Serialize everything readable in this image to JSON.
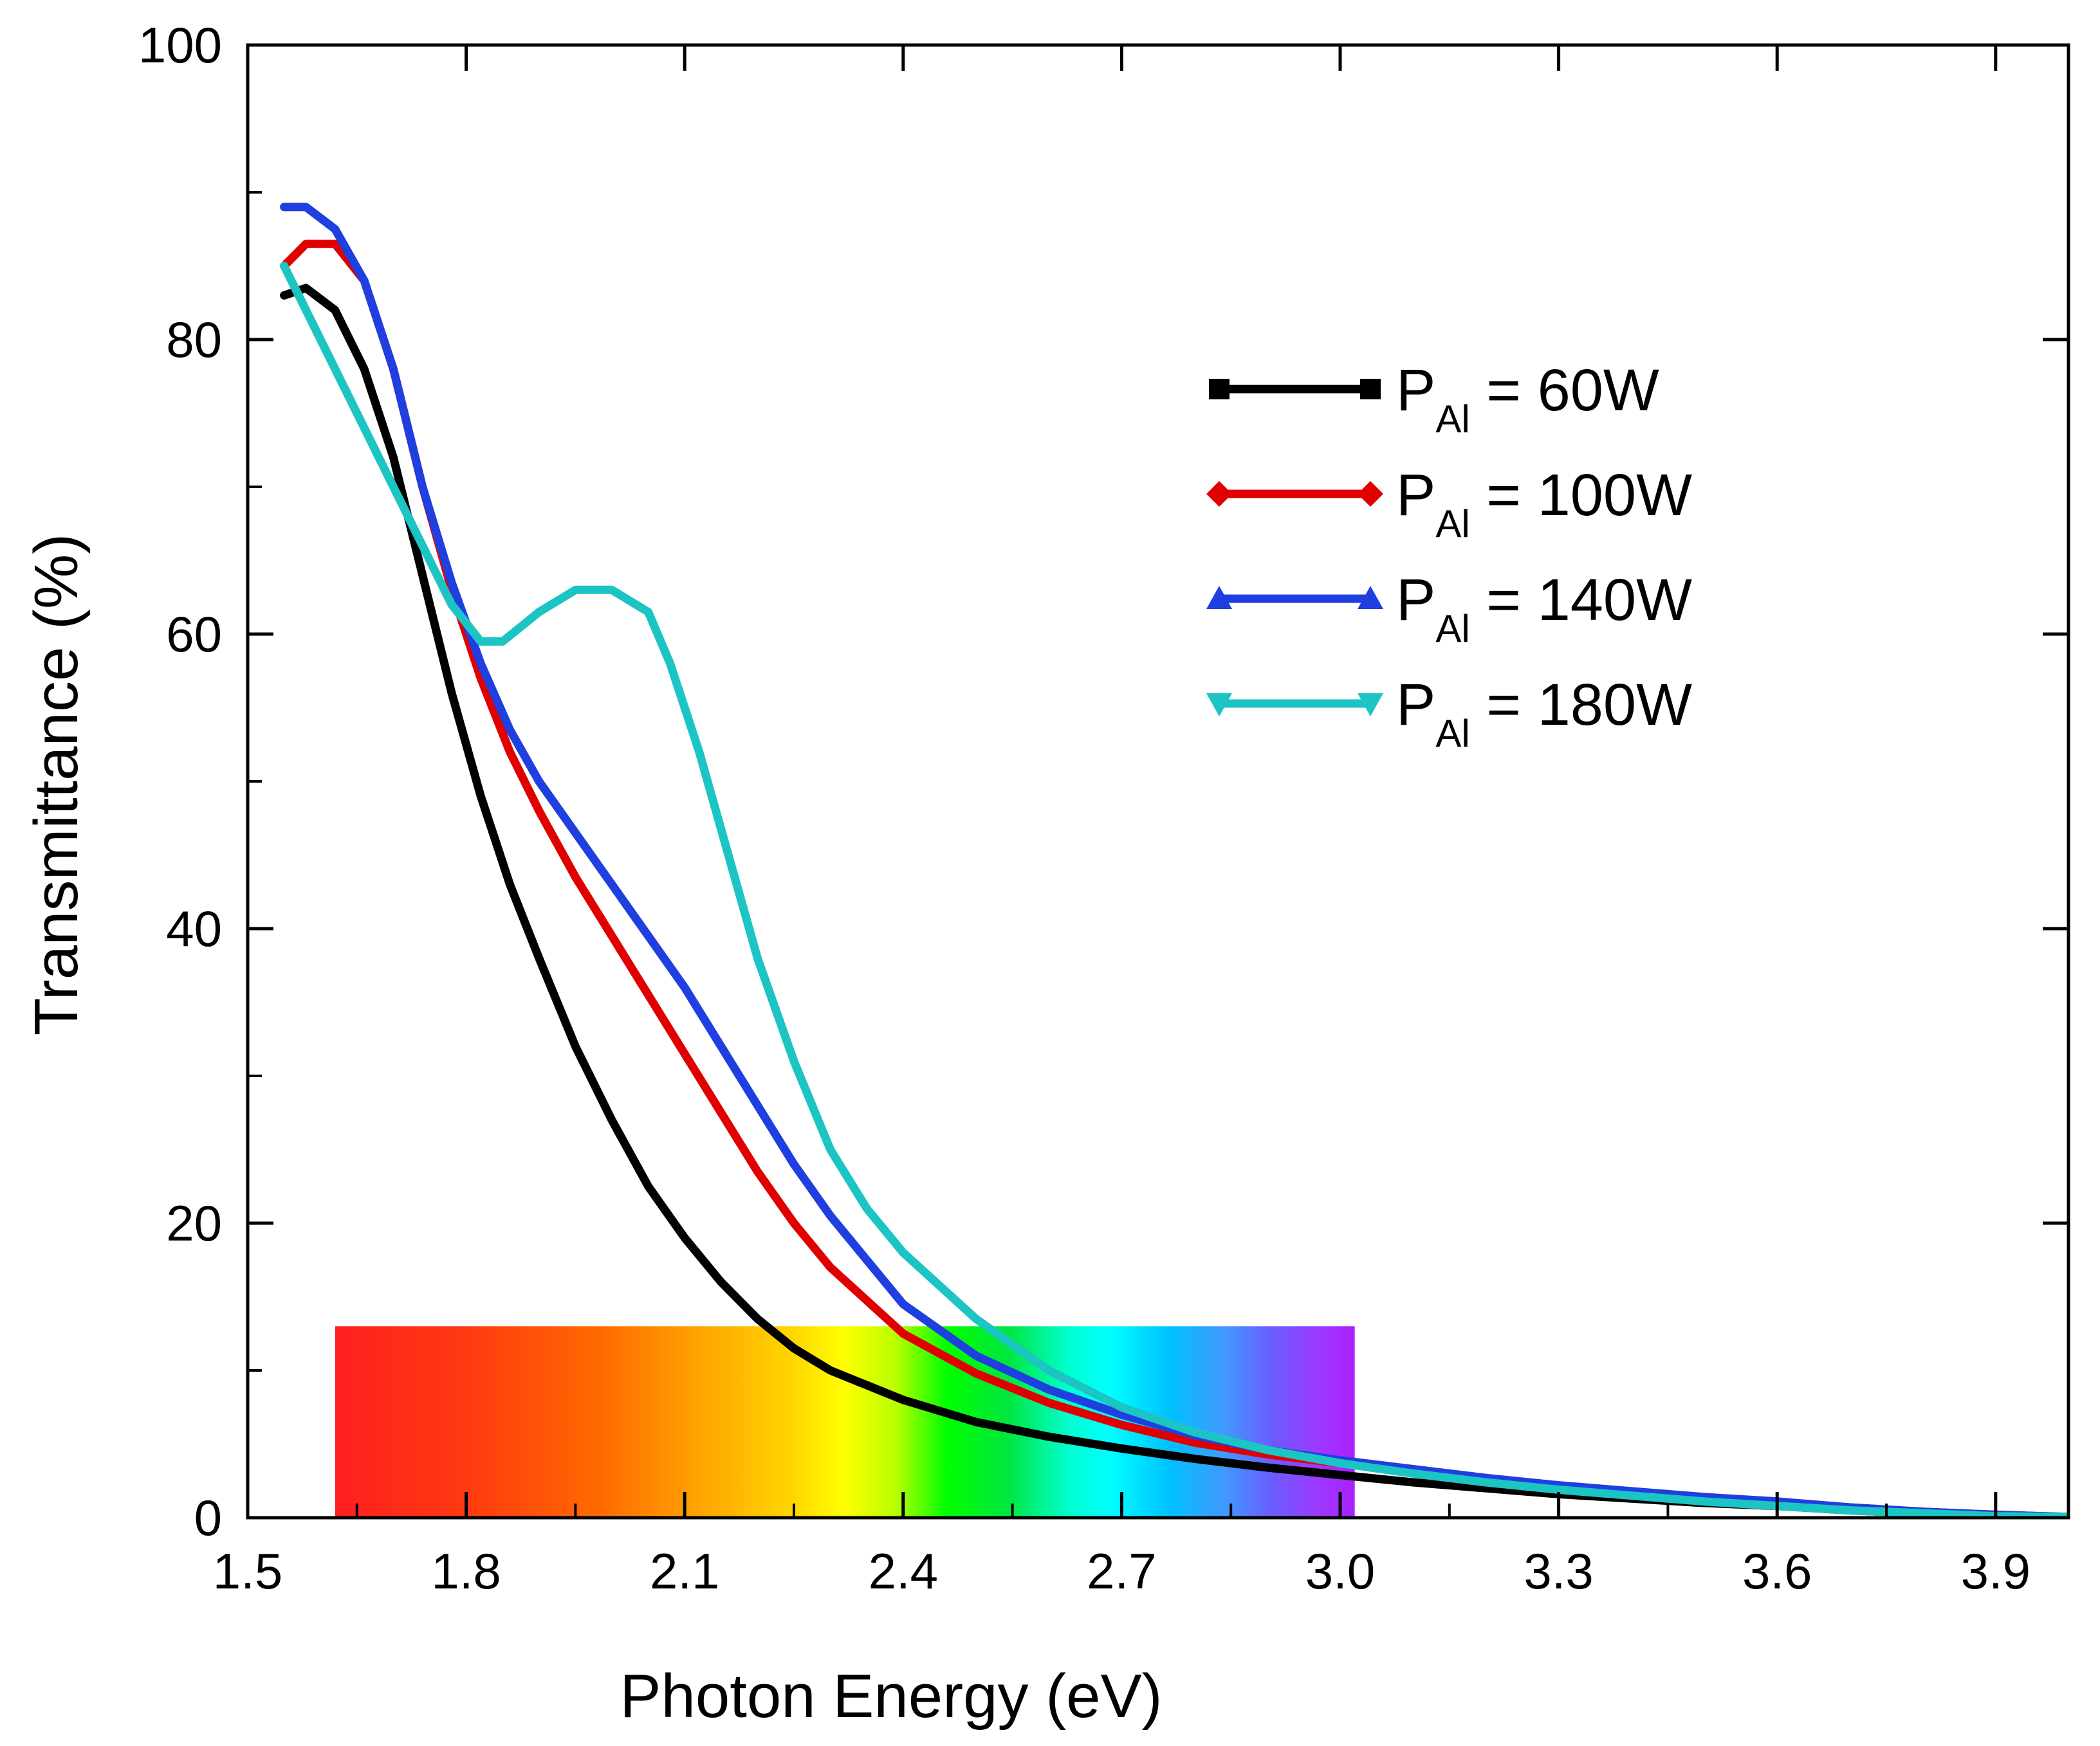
{
  "chart_data": {
    "type": "line",
    "title": "",
    "xlabel": "Photon Energy (eV)",
    "ylabel": "Transmittance (%)",
    "xlim": [
      1.5,
      4.0
    ],
    "ylim": [
      0,
      100
    ],
    "xticks": [
      1.5,
      1.8,
      2.1,
      2.4,
      2.7,
      3.0,
      3.3,
      3.6,
      3.9
    ],
    "xtick_labels": [
      "1.5",
      "1.8",
      "2.1",
      "2.4",
      "2.7",
      "3.0",
      "3.3",
      "3.6",
      "3.9"
    ],
    "yticks": [
      0,
      20,
      40,
      60,
      80,
      100
    ],
    "ytick_labels": [
      "0",
      "20",
      "40",
      "60",
      "80",
      "100"
    ],
    "legend_position": "upper-right",
    "spectrum_band": {
      "x_range": [
        1.62,
        3.02
      ],
      "y_range": [
        0,
        13
      ]
    },
    "series": [
      {
        "name": "P_Al = 60W",
        "label_main": "P",
        "label_sub": "Al",
        "label_rest": " = 60W",
        "color": "#000000",
        "marker": "square",
        "x": [
          1.55,
          1.58,
          1.62,
          1.66,
          1.7,
          1.74,
          1.78,
          1.82,
          1.86,
          1.9,
          1.95,
          2.0,
          2.05,
          2.1,
          2.15,
          2.2,
          2.25,
          2.3,
          2.4,
          2.5,
          2.6,
          2.7,
          2.8,
          2.9,
          3.0,
          3.1,
          3.2,
          3.3,
          3.4,
          3.5,
          3.6,
          3.7,
          3.8,
          3.9,
          4.0
        ],
        "y": [
          83,
          83.5,
          82,
          78,
          72,
          64,
          56,
          49,
          43,
          38,
          32,
          27,
          22.5,
          19,
          16,
          13.5,
          11.5,
          10,
          8,
          6.5,
          5.5,
          4.7,
          4,
          3.4,
          2.9,
          2.4,
          2,
          1.6,
          1.3,
          1.0,
          0.8,
          0.5,
          0.3,
          0.15,
          0.05
        ]
      },
      {
        "name": "P_Al = 100W",
        "label_main": "P",
        "label_sub": "Al",
        "label_rest": " = 100W",
        "color": "#e00000",
        "marker": "diamond",
        "x": [
          1.55,
          1.58,
          1.62,
          1.66,
          1.7,
          1.74,
          1.78,
          1.82,
          1.86,
          1.9,
          1.95,
          2.0,
          2.05,
          2.1,
          2.15,
          2.2,
          2.25,
          2.3,
          2.4,
          2.5,
          2.6,
          2.7,
          2.8,
          2.9,
          3.0,
          3.1,
          3.2,
          3.3,
          3.4,
          3.5,
          3.6,
          3.7,
          3.8,
          3.9,
          4.0
        ],
        "y": [
          85,
          86.5,
          86.5,
          84,
          78,
          70,
          63,
          57,
          52,
          48,
          43.5,
          39.5,
          35.5,
          31.5,
          27.5,
          23.5,
          20,
          17,
          12.5,
          9.8,
          7.8,
          6.3,
          5.1,
          4.3,
          3.7,
          3.1,
          2.6,
          2.1,
          1.7,
          1.3,
          1.0,
          0.7,
          0.4,
          0.2,
          0.05
        ]
      },
      {
        "name": "P_Al = 140W",
        "label_main": "P",
        "label_sub": "Al",
        "label_rest": " = 140W",
        "color": "#1f3fe0",
        "marker": "triangle-up",
        "x": [
          1.55,
          1.58,
          1.62,
          1.66,
          1.7,
          1.74,
          1.78,
          1.82,
          1.86,
          1.9,
          1.95,
          2.0,
          2.05,
          2.1,
          2.15,
          2.2,
          2.25,
          2.3,
          2.4,
          2.5,
          2.6,
          2.7,
          2.8,
          2.9,
          3.0,
          3.1,
          3.2,
          3.3,
          3.4,
          3.5,
          3.6,
          3.7,
          3.8,
          3.9,
          4.0
        ],
        "y": [
          89,
          89,
          87.5,
          84,
          78,
          70,
          63.5,
          58,
          53.5,
          50,
          46.5,
          43,
          39.5,
          36,
          32,
          28,
          24,
          20.5,
          14.5,
          11,
          8.7,
          7,
          5.6,
          4.6,
          3.9,
          3.3,
          2.7,
          2.2,
          1.8,
          1.4,
          1.1,
          0.7,
          0.4,
          0.2,
          0.05
        ]
      },
      {
        "name": "P_Al = 180W",
        "label_main": "P",
        "label_sub": "Al",
        "label_rest": " = 180W",
        "color": "#1cc4c4",
        "marker": "triangle-down",
        "x": [
          1.55,
          1.6,
          1.65,
          1.7,
          1.75,
          1.78,
          1.82,
          1.85,
          1.9,
          1.95,
          2.0,
          2.05,
          2.08,
          2.12,
          2.16,
          2.2,
          2.25,
          2.3,
          2.35,
          2.4,
          2.5,
          2.6,
          2.7,
          2.8,
          2.9,
          3.0,
          3.1,
          3.2,
          3.3,
          3.4,
          3.5,
          3.6,
          3.7,
          3.8,
          3.9,
          4.0
        ],
        "y": [
          85,
          80,
          75,
          70,
          65,
          62,
          59.5,
          59.5,
          61.5,
          63,
          63,
          61.5,
          58,
          52,
          45,
          38,
          31,
          25,
          21,
          18,
          13.5,
          10,
          7.5,
          5.8,
          4.6,
          3.7,
          3.0,
          2.4,
          1.9,
          1.5,
          1.1,
          0.8,
          0.5,
          0.3,
          0.1,
          0.05
        ]
      }
    ]
  }
}
